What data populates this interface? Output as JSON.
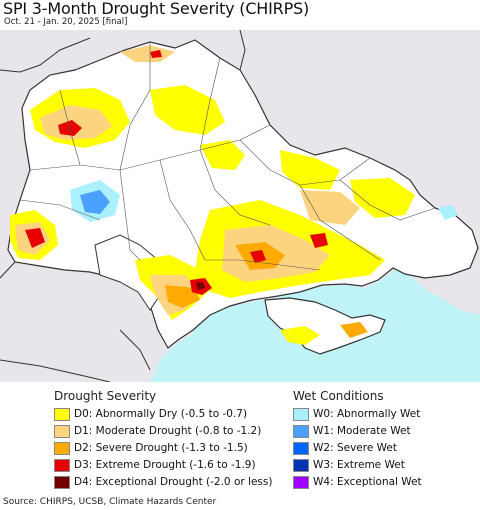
{
  "header": {
    "title": "SPI 3-Month Drought Severity (CHIRPS)",
    "subtitle": "Oct. 21 - Jan. 20, 2025 [final]"
  },
  "map": {
    "background_color": "#e8e6ea",
    "water_color": "#bff3f7",
    "land_color": "#ffffff",
    "border_color": "#333333"
  },
  "legend": {
    "drought": {
      "heading": "Drought Severity",
      "items": [
        {
          "label": "D0: Abnormally Dry (-0.5 to -0.7)",
          "color": "#ffff00"
        },
        {
          "label": "D1: Moderate Drought (-0.8 to -1.2)",
          "color": "#fcd37f"
        },
        {
          "label": "D2: Severe Drought (-1.3 to -1.5)",
          "color": "#ffaa00"
        },
        {
          "label": "D3: Extreme Drought (-1.6 to -1.9)",
          "color": "#e60000"
        },
        {
          "label": "D4: Exceptional Drought (-2.0 or less)",
          "color": "#730000"
        }
      ]
    },
    "wet": {
      "heading": "Wet Conditions",
      "items": [
        {
          "label": "W0: Abnormally Wet",
          "color": "#aaf0ff"
        },
        {
          "label": "W1: Moderate Wet",
          "color": "#4ca0ff"
        },
        {
          "label": "W2: Severe Wet",
          "color": "#0066ff"
        },
        {
          "label": "W3: Extreme Wet",
          "color": "#0033b0"
        },
        {
          "label": "W4: Exceptional Wet",
          "color": "#a000ff"
        }
      ]
    }
  },
  "footer": {
    "source": "Source: CHIRPS, UCSB, Climate Hazards Center"
  }
}
